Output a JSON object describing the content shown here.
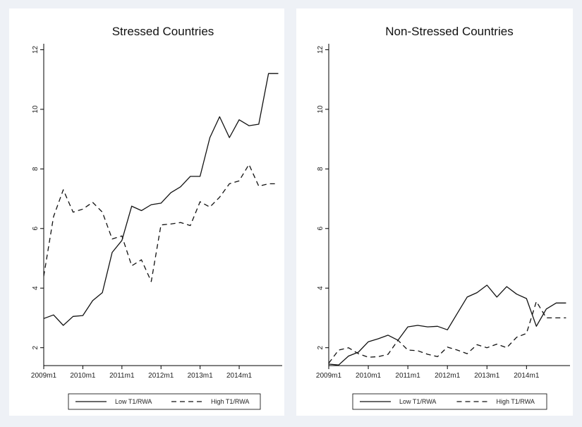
{
  "chart_data": [
    {
      "type": "line",
      "title": "Stressed Countries",
      "xlabel": "",
      "ylabel": "",
      "x_ticks": [
        "2009m1",
        "2010m1",
        "2011m1",
        "2012m1",
        "2013m1",
        "2014m1"
      ],
      "y_ticks": [
        "2",
        "4",
        "6",
        "8",
        "10",
        "12"
      ],
      "xlim": [
        2009.0,
        2015.1
      ],
      "ylim": [
        1.4,
        12.2
      ],
      "grid": false,
      "legend_position": "bottom",
      "series": [
        {
          "name": "Low T1/RWA",
          "style": "solid",
          "x": [
            2009.0,
            2009.25,
            2009.5,
            2009.75,
            2010.0,
            2010.25,
            2010.5,
            2010.75,
            2011.0,
            2011.25,
            2011.5,
            2011.75,
            2012.0,
            2012.25,
            2012.5,
            2012.75,
            2013.0,
            2013.25,
            2013.5,
            2013.75,
            2014.0,
            2014.25,
            2014.5,
            2014.75,
            2015.0
          ],
          "y": [
            2.98,
            3.1,
            2.75,
            3.05,
            3.08,
            3.58,
            3.85,
            5.2,
            5.6,
            6.75,
            6.6,
            6.8,
            6.85,
            7.2,
            7.4,
            7.75,
            7.75,
            9.05,
            9.75,
            9.05,
            9.65,
            9.45,
            9.5,
            11.2,
            11.2
          ]
        },
        {
          "name": "High T1/RWA",
          "style": "dashed",
          "x": [
            2009.0,
            2009.25,
            2009.5,
            2009.75,
            2010.0,
            2010.25,
            2010.5,
            2010.75,
            2011.0,
            2011.25,
            2011.5,
            2011.75,
            2012.0,
            2012.25,
            2012.5,
            2012.75,
            2013.0,
            2013.25,
            2013.5,
            2013.75,
            2014.0,
            2014.25,
            2014.5,
            2014.75,
            2015.0
          ],
          "y": [
            4.4,
            6.4,
            7.3,
            6.55,
            6.65,
            6.88,
            6.55,
            5.65,
            5.75,
            4.75,
            4.95,
            4.22,
            6.12,
            6.15,
            6.2,
            6.1,
            6.9,
            6.72,
            7.05,
            7.5,
            7.6,
            8.15,
            7.42,
            7.5,
            7.5
          ]
        }
      ]
    },
    {
      "type": "line",
      "title": "Non-Stressed Countries",
      "xlabel": "",
      "ylabel": "",
      "x_ticks": [
        "2009m1",
        "2010m1",
        "2011m1",
        "2012m1",
        "2013m1",
        "2014m1"
      ],
      "y_ticks": [
        "2",
        "4",
        "6",
        "8",
        "10",
        "12"
      ],
      "xlim": [
        2009.0,
        2015.1
      ],
      "ylim": [
        1.4,
        12.2
      ],
      "grid": false,
      "legend_position": "bottom",
      "series": [
        {
          "name": "Low T1/RWA",
          "style": "solid",
          "x": [
            2009.0,
            2009.25,
            2009.5,
            2009.75,
            2010.0,
            2010.25,
            2010.5,
            2010.75,
            2011.0,
            2011.25,
            2011.5,
            2011.75,
            2012.0,
            2012.25,
            2012.5,
            2012.75,
            2013.0,
            2013.25,
            2013.5,
            2013.75,
            2014.0,
            2014.25,
            2014.5,
            2014.75,
            2015.0
          ],
          "y": [
            1.45,
            1.42,
            1.72,
            1.85,
            2.2,
            2.3,
            2.42,
            2.25,
            2.7,
            2.75,
            2.7,
            2.72,
            2.6,
            3.15,
            3.7,
            3.85,
            4.1,
            3.7,
            4.05,
            3.8,
            3.65,
            2.72,
            3.3,
            3.5,
            3.5
          ]
        },
        {
          "name": "High T1/RWA",
          "style": "dashed",
          "x": [
            2009.0,
            2009.25,
            2009.5,
            2009.75,
            2010.0,
            2010.25,
            2010.5,
            2010.75,
            2011.0,
            2011.25,
            2011.5,
            2011.75,
            2012.0,
            2012.25,
            2012.5,
            2012.75,
            2013.0,
            2013.25,
            2013.5,
            2013.75,
            2014.0,
            2014.25,
            2014.5,
            2014.75,
            2015.0
          ],
          "y": [
            1.48,
            1.92,
            2.0,
            1.8,
            1.68,
            1.7,
            1.78,
            2.25,
            1.92,
            1.9,
            1.78,
            1.7,
            2.02,
            1.92,
            1.8,
            2.1,
            2.0,
            2.12,
            2.0,
            2.35,
            2.48,
            3.55,
            3.0,
            3.0,
            3.0
          ]
        }
      ]
    }
  ]
}
